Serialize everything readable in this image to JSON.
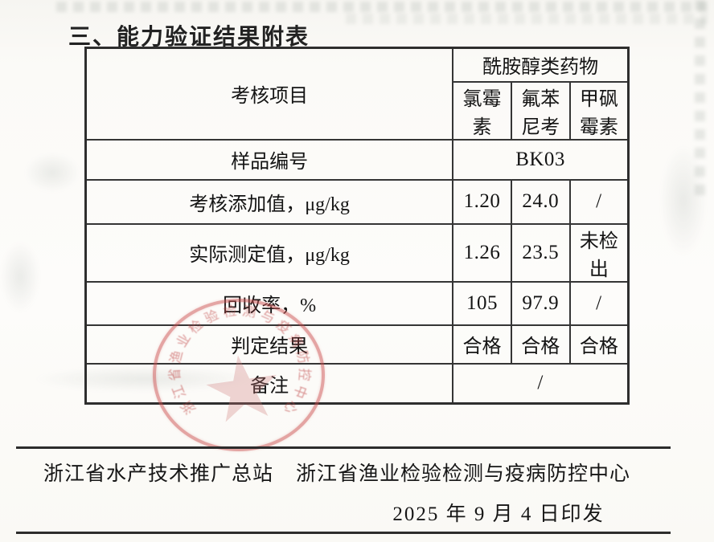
{
  "page": {
    "title": "三、能力验证结果附表"
  },
  "table": {
    "corner_header": "考核项目",
    "group_header": "酰胺醇类药物",
    "columns": [
      "氯霉素",
      "氟苯尼考",
      "甲砜霉素"
    ],
    "rows": [
      {
        "label": "样品编号",
        "span_value": "BK03"
      },
      {
        "label": "考核添加值，μg/kg",
        "values": [
          "1.20",
          "24.0",
          "/"
        ]
      },
      {
        "label": "实际测定值，μg/kg",
        "values": [
          "1.26",
          "23.5",
          "未检出"
        ]
      },
      {
        "label": "回收率，%",
        "values": [
          "105",
          "97.9",
          "/"
        ]
      },
      {
        "label": "判定结果",
        "values": [
          "合格",
          "合格",
          "合格"
        ]
      },
      {
        "label": "备注",
        "span_value": "/"
      }
    ]
  },
  "seal": {
    "ring_text": "浙江省渔业检验检测与疫病防控中心",
    "ring_color": "#c04444",
    "star_color": "#cd7878"
  },
  "footer": {
    "org1": "浙江省水产技术推广总站",
    "org2": "浙江省渔业检验检测与疫病防控中心",
    "date_line": "2025 年 9 月 4 日印发"
  }
}
